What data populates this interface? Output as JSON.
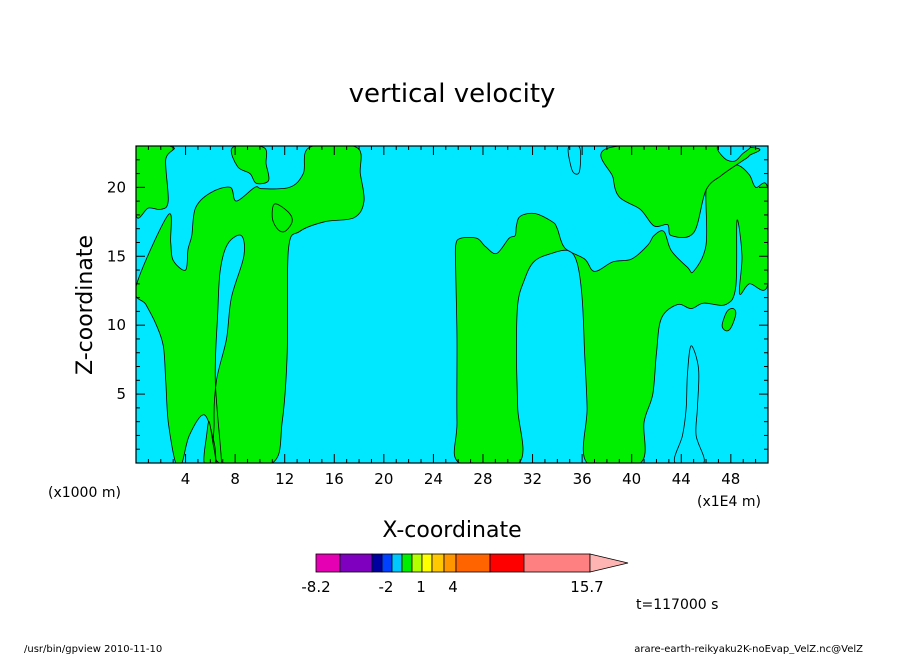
{
  "chart_data": {
    "type": "heatmap",
    "title": "vertical velocity",
    "xlabel": "X-coordinate",
    "ylabel": "Z-coordinate",
    "x_unit_left": "(x1000 m)",
    "x_unit_right": "(x1E4 m)",
    "xlim": [
      0,
      51
    ],
    "ylim": [
      0,
      23
    ],
    "x_ticks": [
      4,
      8,
      12,
      16,
      20,
      24,
      28,
      32,
      36,
      40,
      44,
      48
    ],
    "y_ticks": [
      5,
      10,
      15,
      20
    ],
    "colors": {
      "negative": "#00e8ff",
      "positive": "#00ee00",
      "contour": "#000000"
    },
    "colorbar": {
      "colors": [
        "#e600b4",
        "#8000c0",
        "#0000a0",
        "#0040ff",
        "#00c8ff",
        "#00ee00",
        "#b4ff00",
        "#ffff00",
        "#ffc800",
        "#ff9600",
        "#ff6400",
        "#ff0000",
        "#ff8080",
        "#ffb4b4"
      ],
      "labels": [
        "-8.2",
        "-2",
        "1",
        "4",
        "15.7"
      ]
    },
    "time_label": "t=117000 s",
    "footer_left": "/usr/bin/gpview   2010-11-10",
    "footer_right": "arare-earth-reikyaku2K-noEvap_VelZ.nc@VelZ",
    "positive_regions": [
      [
        [
          0,
          18
        ],
        [
          1,
          18.5
        ],
        [
          2,
          18.4
        ],
        [
          2.6,
          19
        ],
        [
          2.4,
          22
        ],
        [
          3,
          22.9
        ],
        [
          0,
          22.9
        ]
      ],
      [
        [
          0,
          12.8
        ],
        [
          0.8,
          11.5
        ],
        [
          1.6,
          10.1
        ],
        [
          2.2,
          8.5
        ],
        [
          2.4,
          6
        ],
        [
          2.6,
          3
        ],
        [
          3.2,
          0
        ],
        [
          3.7,
          0
        ],
        [
          4.3,
          2
        ],
        [
          5.5,
          3.5
        ],
        [
          6.3,
          1.5
        ],
        [
          6.5,
          0
        ],
        [
          6.9,
          0
        ],
        [
          6.4,
          6
        ],
        [
          6.6,
          11
        ],
        [
          6.8,
          14
        ],
        [
          7.4,
          15.9
        ],
        [
          8.5,
          16.5
        ],
        [
          8.7,
          15
        ],
        [
          7.7,
          12
        ],
        [
          7.3,
          9
        ],
        [
          6.5,
          6
        ],
        [
          6.3,
          3
        ],
        [
          6.7,
          0
        ],
        [
          11,
          0
        ],
        [
          11.8,
          3
        ],
        [
          12.2,
          8
        ],
        [
          12.3,
          15.5
        ],
        [
          13.2,
          16.8
        ],
        [
          15.2,
          17.5
        ],
        [
          17.6,
          17.8
        ],
        [
          18.4,
          19
        ],
        [
          18.1,
          21
        ],
        [
          17.8,
          22.9
        ],
        [
          14,
          22.9
        ],
        [
          13.5,
          21
        ],
        [
          12.4,
          20
        ],
        [
          10.2,
          19.9
        ],
        [
          9.6,
          20
        ],
        [
          8.1,
          19
        ],
        [
          7.6,
          20
        ],
        [
          6,
          19.6
        ],
        [
          4.8,
          18.5
        ],
        [
          4.5,
          16.5
        ],
        [
          4.2,
          15.5
        ],
        [
          4,
          14
        ],
        [
          3,
          14.7
        ],
        [
          2.8,
          16
        ],
        [
          2.6,
          18
        ]
      ],
      [
        [
          7.8,
          22.9
        ],
        [
          8.2,
          21.5
        ],
        [
          9.2,
          21
        ],
        [
          9.7,
          20.3
        ],
        [
          10.7,
          20.5
        ],
        [
          10.5,
          21.7
        ],
        [
          10.3,
          22.9
        ]
      ],
      [
        [
          11.2,
          18.8
        ],
        [
          12.3,
          18.2
        ],
        [
          12.6,
          17.5
        ],
        [
          12,
          16.8
        ],
        [
          11.4,
          17
        ],
        [
          11,
          17.8
        ]
      ],
      [
        [
          26.1,
          0
        ],
        [
          25.9,
          3
        ],
        [
          25.9,
          9
        ],
        [
          25.8,
          14
        ],
        [
          25.8,
          15.8
        ],
        [
          26.2,
          16.3
        ],
        [
          27.5,
          16.3
        ],
        [
          28.2,
          15.7
        ],
        [
          29.1,
          15.2
        ],
        [
          30.1,
          16.3
        ],
        [
          30.6,
          16.5
        ],
        [
          30.7,
          17.2
        ],
        [
          31,
          17.9
        ],
        [
          32.2,
          18.1
        ],
        [
          33.6,
          17.5
        ],
        [
          34,
          17
        ],
        [
          34.6,
          15.6
        ],
        [
          36.2,
          14.8
        ],
        [
          37,
          13.9
        ],
        [
          38.5,
          14.6
        ],
        [
          40,
          14.8
        ],
        [
          41.3,
          15.8
        ],
        [
          41.8,
          16.5
        ],
        [
          42.6,
          16.8
        ],
        [
          43.2,
          15.4
        ],
        [
          44.5,
          14.2
        ],
        [
          45,
          13.9
        ],
        [
          46,
          15.8
        ],
        [
          46,
          19.8
        ],
        [
          46.5,
          20.9
        ],
        [
          47.6,
          21.6
        ],
        [
          48.6,
          21.6
        ],
        [
          49.5,
          20.9
        ],
        [
          50,
          20
        ],
        [
          51,
          19.8
        ],
        [
          51,
          13
        ],
        [
          49.5,
          13
        ],
        [
          48.7,
          12.3
        ],
        [
          48.9,
          15
        ],
        [
          48.5,
          17.6
        ],
        [
          48.4,
          12.8
        ],
        [
          47.6,
          11.5
        ],
        [
          45.8,
          11.6
        ],
        [
          44.8,
          11.2
        ],
        [
          43.7,
          11.5
        ],
        [
          42.4,
          10.5
        ],
        [
          42,
          8
        ],
        [
          41.7,
          5
        ],
        [
          41,
          3
        ],
        [
          40.7,
          0
        ],
        [
          36.4,
          0
        ],
        [
          36.4,
          4
        ],
        [
          36.2,
          8
        ],
        [
          36,
          12
        ],
        [
          35.6,
          14.5
        ],
        [
          34.9,
          15.4
        ],
        [
          33.5,
          15.2
        ],
        [
          32.1,
          14.6
        ],
        [
          31.3,
          13.2
        ],
        [
          30.8,
          11.5
        ],
        [
          30.7,
          8
        ],
        [
          30.8,
          4
        ],
        [
          30.9,
          0
        ]
      ],
      [
        [
          38.3,
          22.9
        ],
        [
          38.5,
          20.7
        ],
        [
          39,
          19.3
        ],
        [
          40.7,
          18.4
        ],
        [
          41.8,
          17.2
        ],
        [
          42.9,
          17.3
        ],
        [
          43.2,
          16.5
        ],
        [
          45,
          16.7
        ],
        [
          46,
          19.8
        ],
        [
          47.3,
          20.9
        ],
        [
          48.9,
          21.9
        ],
        [
          49.5,
          22.3
        ],
        [
          49.5,
          22.9
        ]
      ]
    ],
    "negative_islands": [
      [
        [
          43.5,
          0
        ],
        [
          44.1,
          2
        ],
        [
          44.4,
          4
        ],
        [
          44.5,
          6.5
        ],
        [
          44.8,
          8.5
        ],
        [
          45.4,
          6.8
        ],
        [
          45.3,
          4
        ],
        [
          45.2,
          2
        ],
        [
          45.8,
          0
        ]
      ],
      [
        [
          34.9,
          22.9
        ],
        [
          35.1,
          21.5
        ],
        [
          35.4,
          21
        ],
        [
          35.8,
          21.2
        ],
        [
          35.8,
          22.9
        ]
      ],
      [
        [
          47,
          23
        ],
        [
          47.5,
          22.1
        ],
        [
          48.3,
          21.9
        ],
        [
          48.9,
          22.4
        ],
        [
          49.5,
          23
        ]
      ]
    ],
    "positive_islands": [
      [
        [
          47.3,
          10
        ],
        [
          47.7,
          11
        ],
        [
          48.2,
          11.2
        ],
        [
          48.4,
          10.8
        ],
        [
          48,
          9.8
        ],
        [
          47.6,
          9.6
        ]
      ],
      [
        [
          5.5,
          0
        ],
        [
          5.7,
          2
        ],
        [
          5.9,
          3
        ],
        [
          6.2,
          1.5
        ],
        [
          6.4,
          0
        ]
      ]
    ]
  }
}
